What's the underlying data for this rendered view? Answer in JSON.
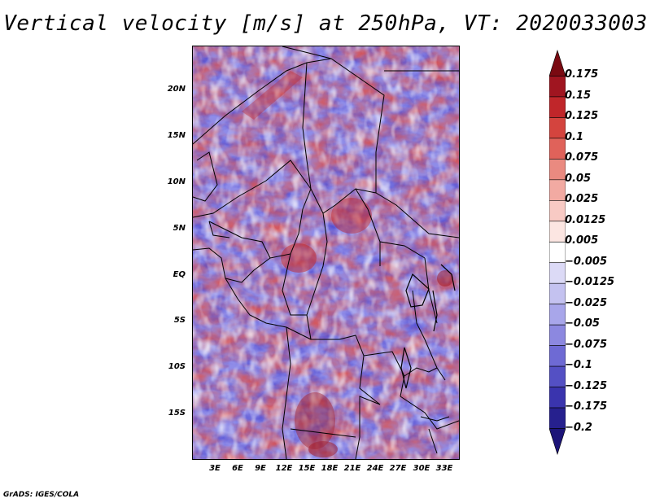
{
  "title": "Vertical velocity [m/s] at 250hPa, VT: 2020033003",
  "footer": "GrADS: IGES/COLA",
  "map": {
    "region": "Central Africa",
    "lat_labels": [
      "20N",
      "15N",
      "10N",
      "5N",
      "EQ",
      "5S",
      "10S",
      "15S"
    ],
    "lon_labels": [
      "3E",
      "6E",
      "9E",
      "12E",
      "15E",
      "18E",
      "21E",
      "24E",
      "27E",
      "30E",
      "33E"
    ]
  },
  "colorbar": {
    "labels": [
      "0.175",
      "0.15",
      "0.125",
      "0.1",
      "0.075",
      "0.05",
      "0.025",
      "0.0125",
      "0.005",
      "−0.005",
      "−0.0125",
      "−0.025",
      "−0.05",
      "−0.075",
      "−0.1",
      "−0.125",
      "−0.175",
      "−0.2"
    ],
    "colors": [
      "#7a0a12",
      "#a01520",
      "#c0262a",
      "#d4443e",
      "#e0625a",
      "#ea8a80",
      "#f2aaa2",
      "#f8cac4",
      "#fce6e2",
      "#ffffff",
      "#dcdaf6",
      "#c4c2f0",
      "#a8a6ea",
      "#8c88e0",
      "#6e6ad4",
      "#5450c4",
      "#3a34ae",
      "#26208e",
      "#1c1478"
    ]
  }
}
